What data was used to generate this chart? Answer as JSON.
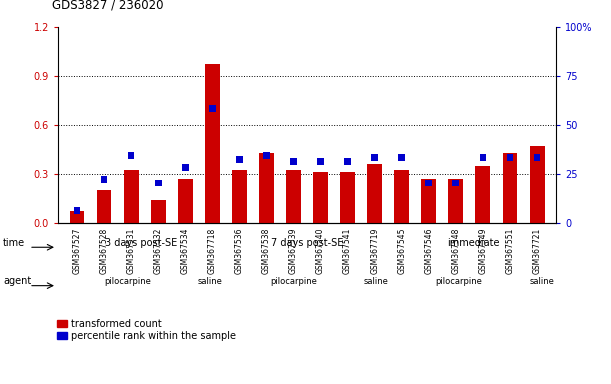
{
  "title": "GDS3827 / 236020",
  "samples": [
    "GSM367527",
    "GSM367528",
    "GSM367531",
    "GSM367532",
    "GSM367534",
    "GSM367718",
    "GSM367536",
    "GSM367538",
    "GSM367539",
    "GSM367540",
    "GSM367541",
    "GSM367719",
    "GSM367545",
    "GSM367546",
    "GSM367548",
    "GSM367549",
    "GSM367551",
    "GSM367721"
  ],
  "red_values": [
    0.07,
    0.2,
    0.32,
    0.14,
    0.27,
    0.97,
    0.32,
    0.43,
    0.32,
    0.31,
    0.31,
    0.36,
    0.32,
    0.27,
    0.27,
    0.35,
    0.43,
    0.47
  ],
  "blue_pct": [
    8,
    24,
    36,
    22,
    30,
    60,
    34,
    36,
    33,
    33,
    33,
    35,
    35,
    22,
    22,
    35,
    35,
    35
  ],
  "red_color": "#cc0000",
  "blue_color": "#0000cc",
  "ylim_left": [
    0,
    1.2
  ],
  "ylim_right": [
    0,
    100
  ],
  "yticks_left": [
    0,
    0.3,
    0.6,
    0.9,
    1.2
  ],
  "yticks_right": [
    0,
    25,
    50,
    75,
    100
  ],
  "time_groups": [
    {
      "label": "3 days post-SE",
      "start": 0,
      "end": 6,
      "color": "#b8e8b8"
    },
    {
      "label": "7 days post-SE",
      "start": 6,
      "end": 12,
      "color": "#5ed85e"
    },
    {
      "label": "immediate",
      "start": 12,
      "end": 18,
      "color": "#44cc44"
    }
  ],
  "agent_groups": [
    {
      "label": "pilocarpine",
      "start": 0,
      "end": 5,
      "color": "#f0a0f0"
    },
    {
      "label": "saline",
      "start": 5,
      "end": 6,
      "color": "#dd66dd"
    },
    {
      "label": "pilocarpine",
      "start": 6,
      "end": 11,
      "color": "#f0a0f0"
    },
    {
      "label": "saline",
      "start": 11,
      "end": 12,
      "color": "#dd66dd"
    },
    {
      "label": "pilocarpine",
      "start": 12,
      "end": 17,
      "color": "#f0a0f0"
    },
    {
      "label": "saline",
      "start": 17,
      "end": 18,
      "color": "#dd66dd"
    }
  ],
  "legend_red": "transformed count",
  "legend_blue": "percentile rank within the sample",
  "bg_color": "#ffffff",
  "tick_color_left": "#cc0000",
  "tick_color_right": "#0000cc",
  "n_samples": 18
}
